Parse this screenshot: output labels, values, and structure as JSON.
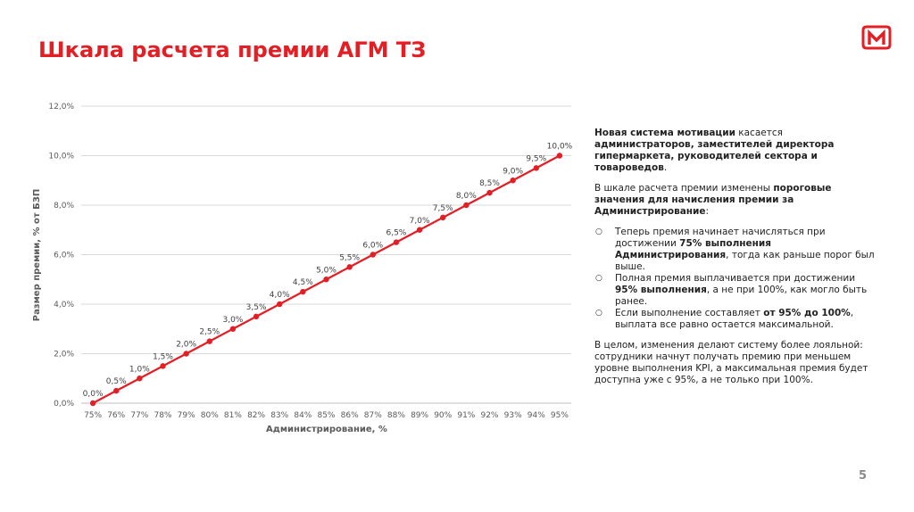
{
  "slide": {
    "title": "Шкала расчета премии АГМ ТЗ",
    "page_number": "5",
    "brand_color": "#e31e24",
    "logo_icon": "magnit-logo-icon"
  },
  "chart_data": {
    "type": "line",
    "title": "",
    "xlabel": "Администрирование, %",
    "ylabel": "Размер премии, % от БЗП",
    "categories": [
      "75%",
      "76%",
      "77%",
      "78%",
      "79%",
      "80%",
      "81%",
      "82%",
      "83%",
      "84%",
      "85%",
      "86%",
      "87%",
      "88%",
      "89%",
      "90%",
      "91%",
      "92%",
      "93%",
      "94%",
      "95%"
    ],
    "series": [
      {
        "values": [
          0,
          0.5,
          1,
          1.5,
          2,
          2.5,
          3,
          3.5,
          4,
          4.5,
          5,
          5.5,
          6,
          6.5,
          7,
          7.5,
          8,
          8.5,
          9,
          9.5,
          10
        ],
        "data_labels": [
          "0,0%",
          "0,5%",
          "1,0%",
          "1,5%",
          "2,0%",
          "2,5%",
          "3,0%",
          "3,5%",
          "4,0%",
          "4,5%",
          "5,0%",
          "5,5%",
          "6,0%",
          "6,5%",
          "7,0%",
          "7,5%",
          "8,0%",
          "8,5%",
          "9,0%",
          "9,5%",
          "10,0%"
        ],
        "color": "#e31e24"
      }
    ],
    "ylim": [
      0,
      12
    ],
    "y_ticks": [
      0,
      2,
      4,
      6,
      8,
      10,
      12
    ],
    "y_tick_labels": [
      "0,0%",
      "2,0%",
      "4,0%",
      "6,0%",
      "8,0%",
      "10,0%",
      "12,0%"
    ],
    "grid": true,
    "legend": "none"
  },
  "text": {
    "p1": [
      {
        "t": "Новая система мотивации",
        "b": true
      },
      {
        "t": " касается ",
        "b": false
      },
      {
        "t": "администраторов, заместителей директора гипермаркета, руководителей сектора и товароведов",
        "b": true
      },
      {
        "t": ".",
        "b": false
      }
    ],
    "p2": [
      {
        "t": "В шкале расчета премии изменены ",
        "b": false
      },
      {
        "t": "пороговые значения для начисления премии за Администрирование",
        "b": true
      },
      {
        "t": ":",
        "b": false
      }
    ],
    "bullets": [
      [
        {
          "t": "Теперь премия начинает начисляться при достижении ",
          "b": false
        },
        {
          "t": "75% выполнения Администрирования",
          "b": true
        },
        {
          "t": ", тогда как раньше порог был выше.",
          "b": false
        }
      ],
      [
        {
          "t": "Полная премия выплачивается при достижении ",
          "b": false
        },
        {
          "t": "95% выполнения",
          "b": true
        },
        {
          "t": ", а не при 100%, как могло быть ранее.",
          "b": false
        }
      ],
      [
        {
          "t": "Если выполнение составляет ",
          "b": false
        },
        {
          "t": "от 95% до 100%",
          "b": true
        },
        {
          "t": ", выплата все равно остается максимальной.",
          "b": false
        }
      ]
    ],
    "p3": [
      {
        "t": "В целом, изменения делают систему более лояльной: сотрудники начнут получать премию при меньшем уровне выполнения KPI, а максимальная премия будет доступна уже с 95%, а не только при 100%.",
        "b": false
      }
    ]
  }
}
